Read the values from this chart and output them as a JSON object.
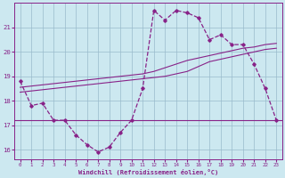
{
  "xlabel": "Windchill (Refroidissement éolien,°C)",
  "bg_color": "#cce8f0",
  "grid_color": "#99bbcc",
  "line_color": "#882288",
  "x_data": [
    0,
    1,
    2,
    3,
    4,
    5,
    6,
    7,
    8,
    9,
    10,
    11,
    12,
    13,
    14,
    15,
    16,
    17,
    18,
    19,
    20,
    21,
    22,
    23
  ],
  "y_main": [
    18.8,
    17.8,
    17.9,
    17.2,
    17.2,
    16.6,
    16.2,
    15.9,
    16.1,
    16.7,
    17.2,
    18.5,
    21.7,
    21.3,
    21.7,
    21.6,
    21.4,
    20.5,
    20.7,
    20.3,
    20.3,
    19.5,
    18.5,
    17.2
  ],
  "y_trend1": [
    18.35,
    18.4,
    18.45,
    18.5,
    18.55,
    18.6,
    18.65,
    18.7,
    18.75,
    18.8,
    18.85,
    18.9,
    18.95,
    19.0,
    19.1,
    19.2,
    19.4,
    19.6,
    19.7,
    19.8,
    19.9,
    20.0,
    20.1,
    20.15
  ],
  "y_trend2": [
    18.55,
    18.6,
    18.65,
    18.7,
    18.75,
    18.8,
    18.85,
    18.9,
    18.95,
    19.0,
    19.05,
    19.1,
    19.2,
    19.35,
    19.5,
    19.65,
    19.75,
    19.85,
    19.95,
    20.05,
    20.15,
    20.2,
    20.3,
    20.35
  ],
  "y_hline": 17.2,
  "xlim": [
    -0.5,
    23.5
  ],
  "ylim": [
    15.6,
    22.0
  ],
  "yticks": [
    16,
    17,
    18,
    19,
    20,
    21
  ],
  "xticks": [
    0,
    1,
    2,
    3,
    4,
    5,
    6,
    7,
    8,
    9,
    10,
    11,
    12,
    13,
    14,
    15,
    16,
    17,
    18,
    19,
    20,
    21,
    22,
    23
  ],
  "figsize": [
    3.2,
    2.0
  ],
  "dpi": 100
}
